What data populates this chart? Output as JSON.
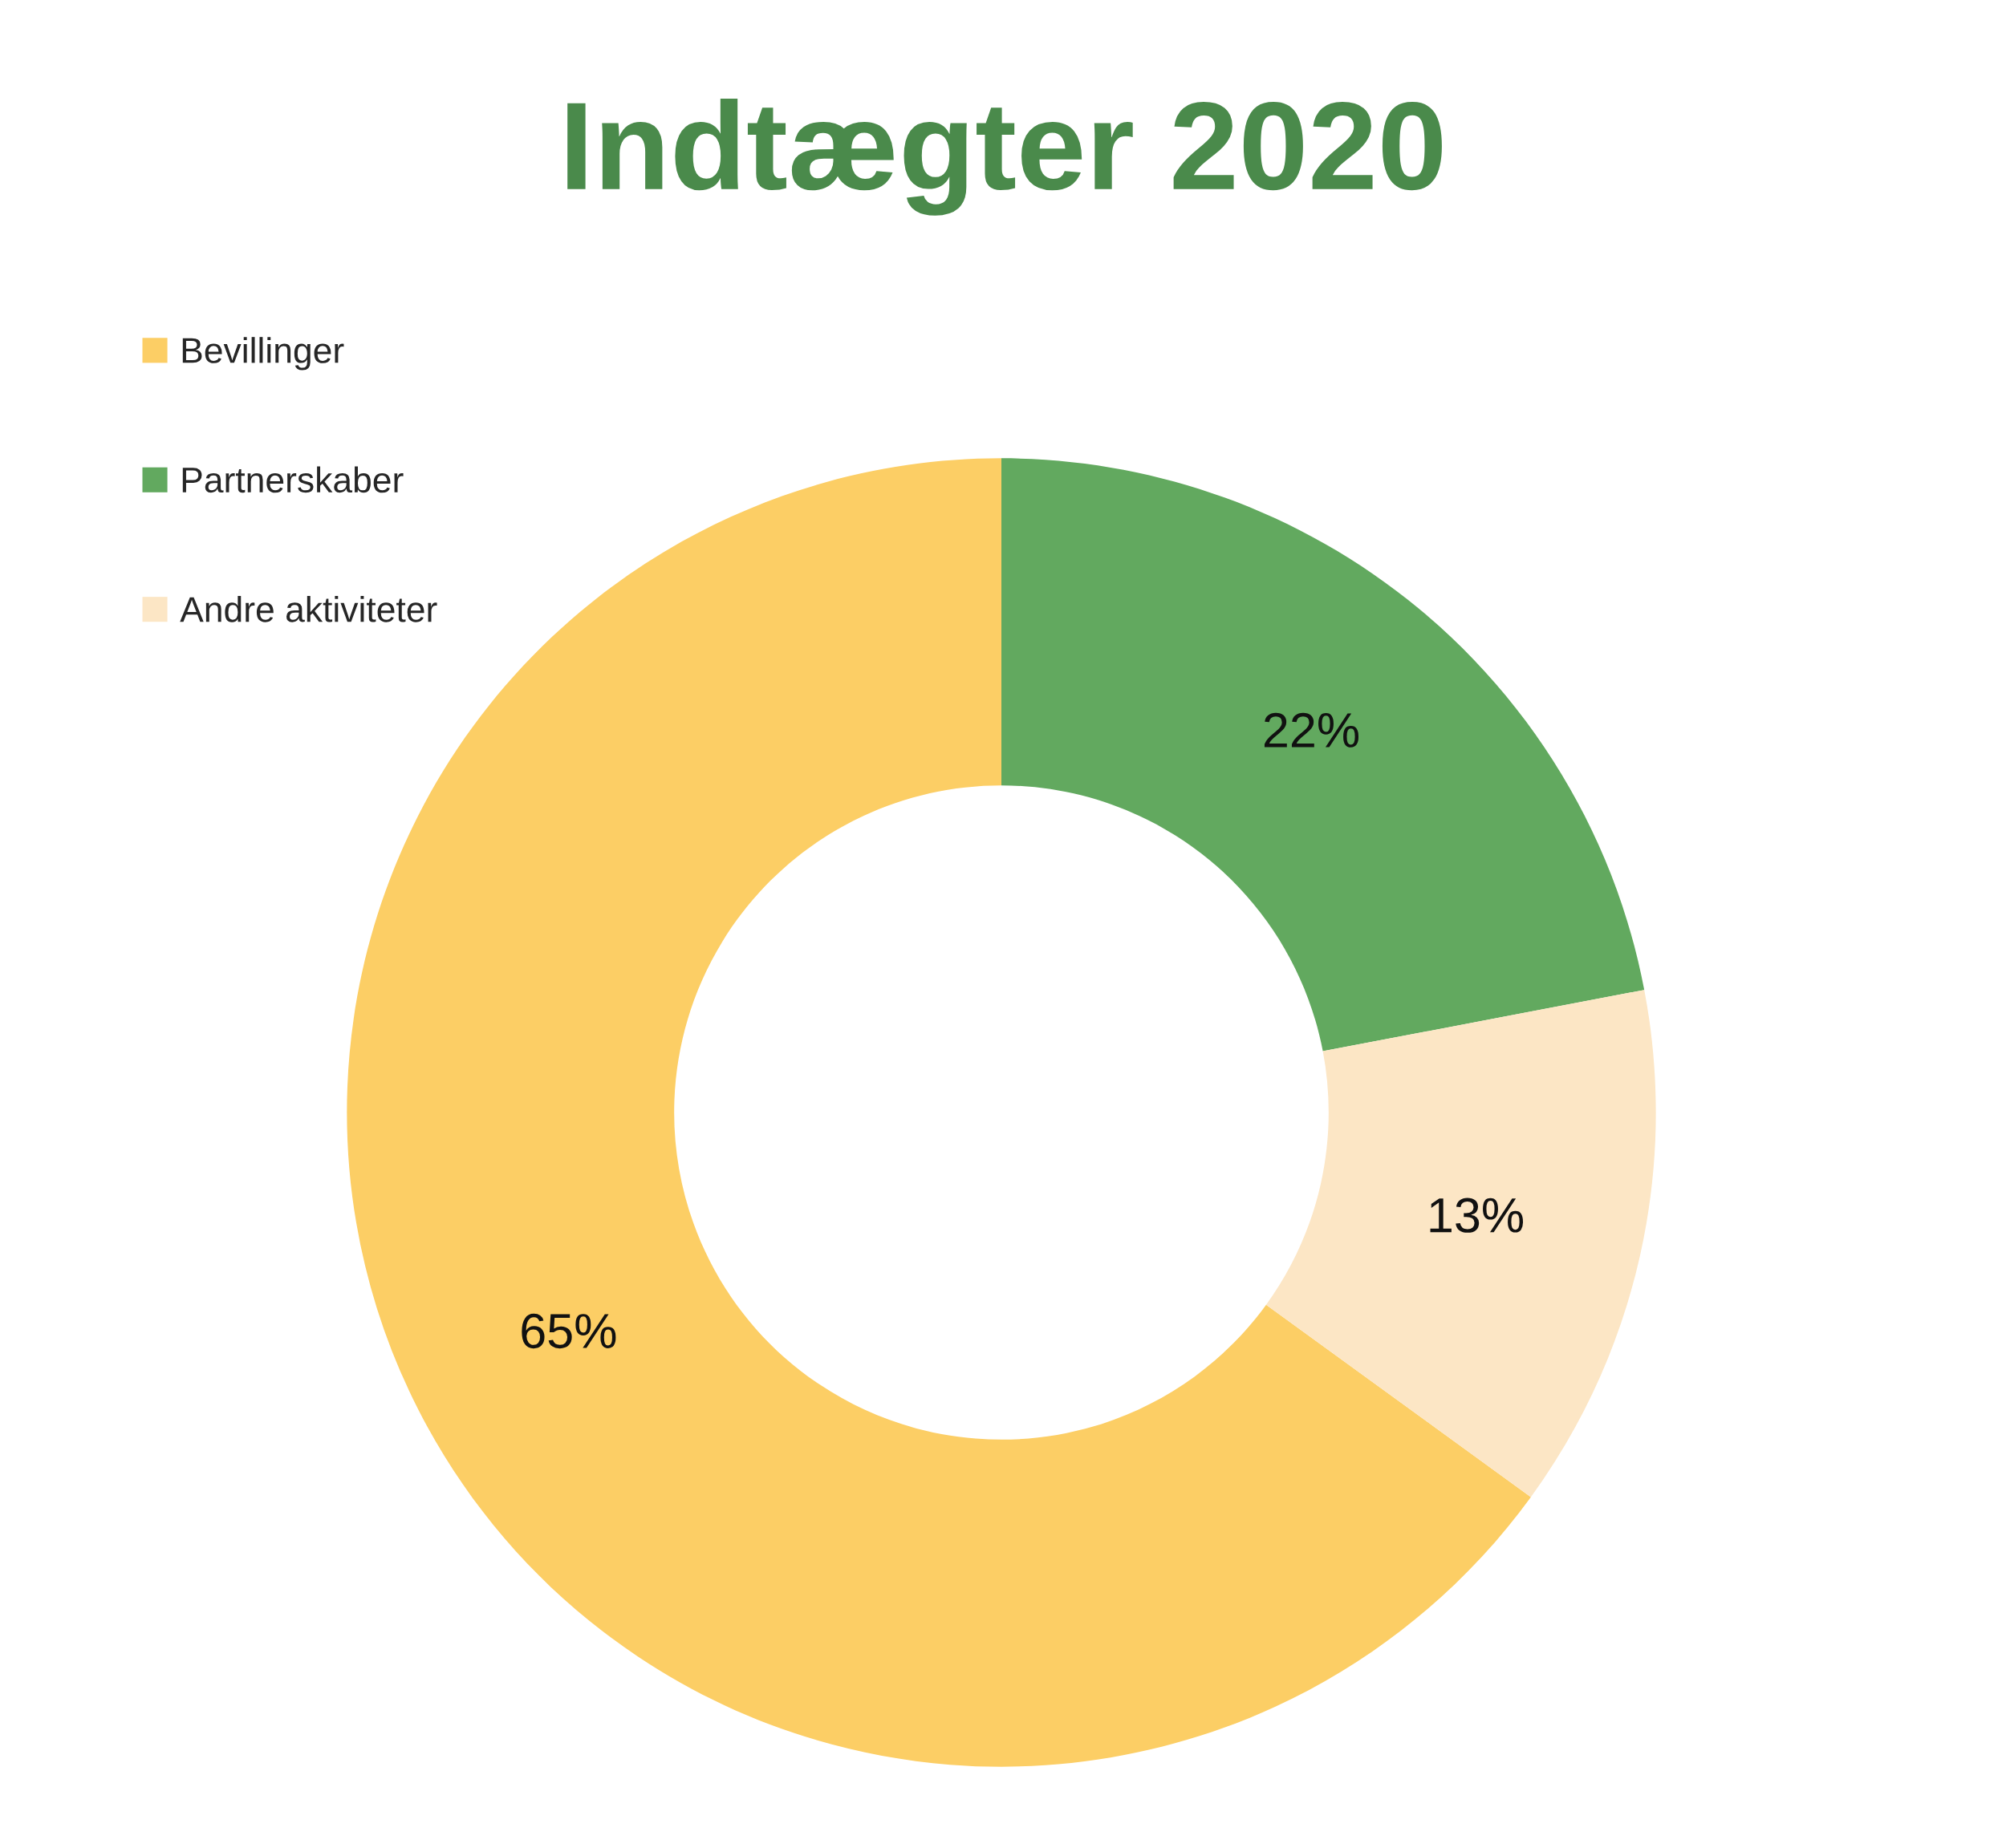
{
  "chart_data": {
    "type": "donut",
    "title": "Indtægter 2020",
    "categories": [
      "Bevillinger",
      "Partnerskaber",
      "Andre aktiviteter"
    ],
    "values": [
      65,
      22,
      13
    ],
    "colors": [
      "#fcce65",
      "#62a95f",
      "#fce6c5"
    ],
    "value_labels": [
      "65%",
      "22%",
      "13%"
    ],
    "legend": "top left"
  }
}
